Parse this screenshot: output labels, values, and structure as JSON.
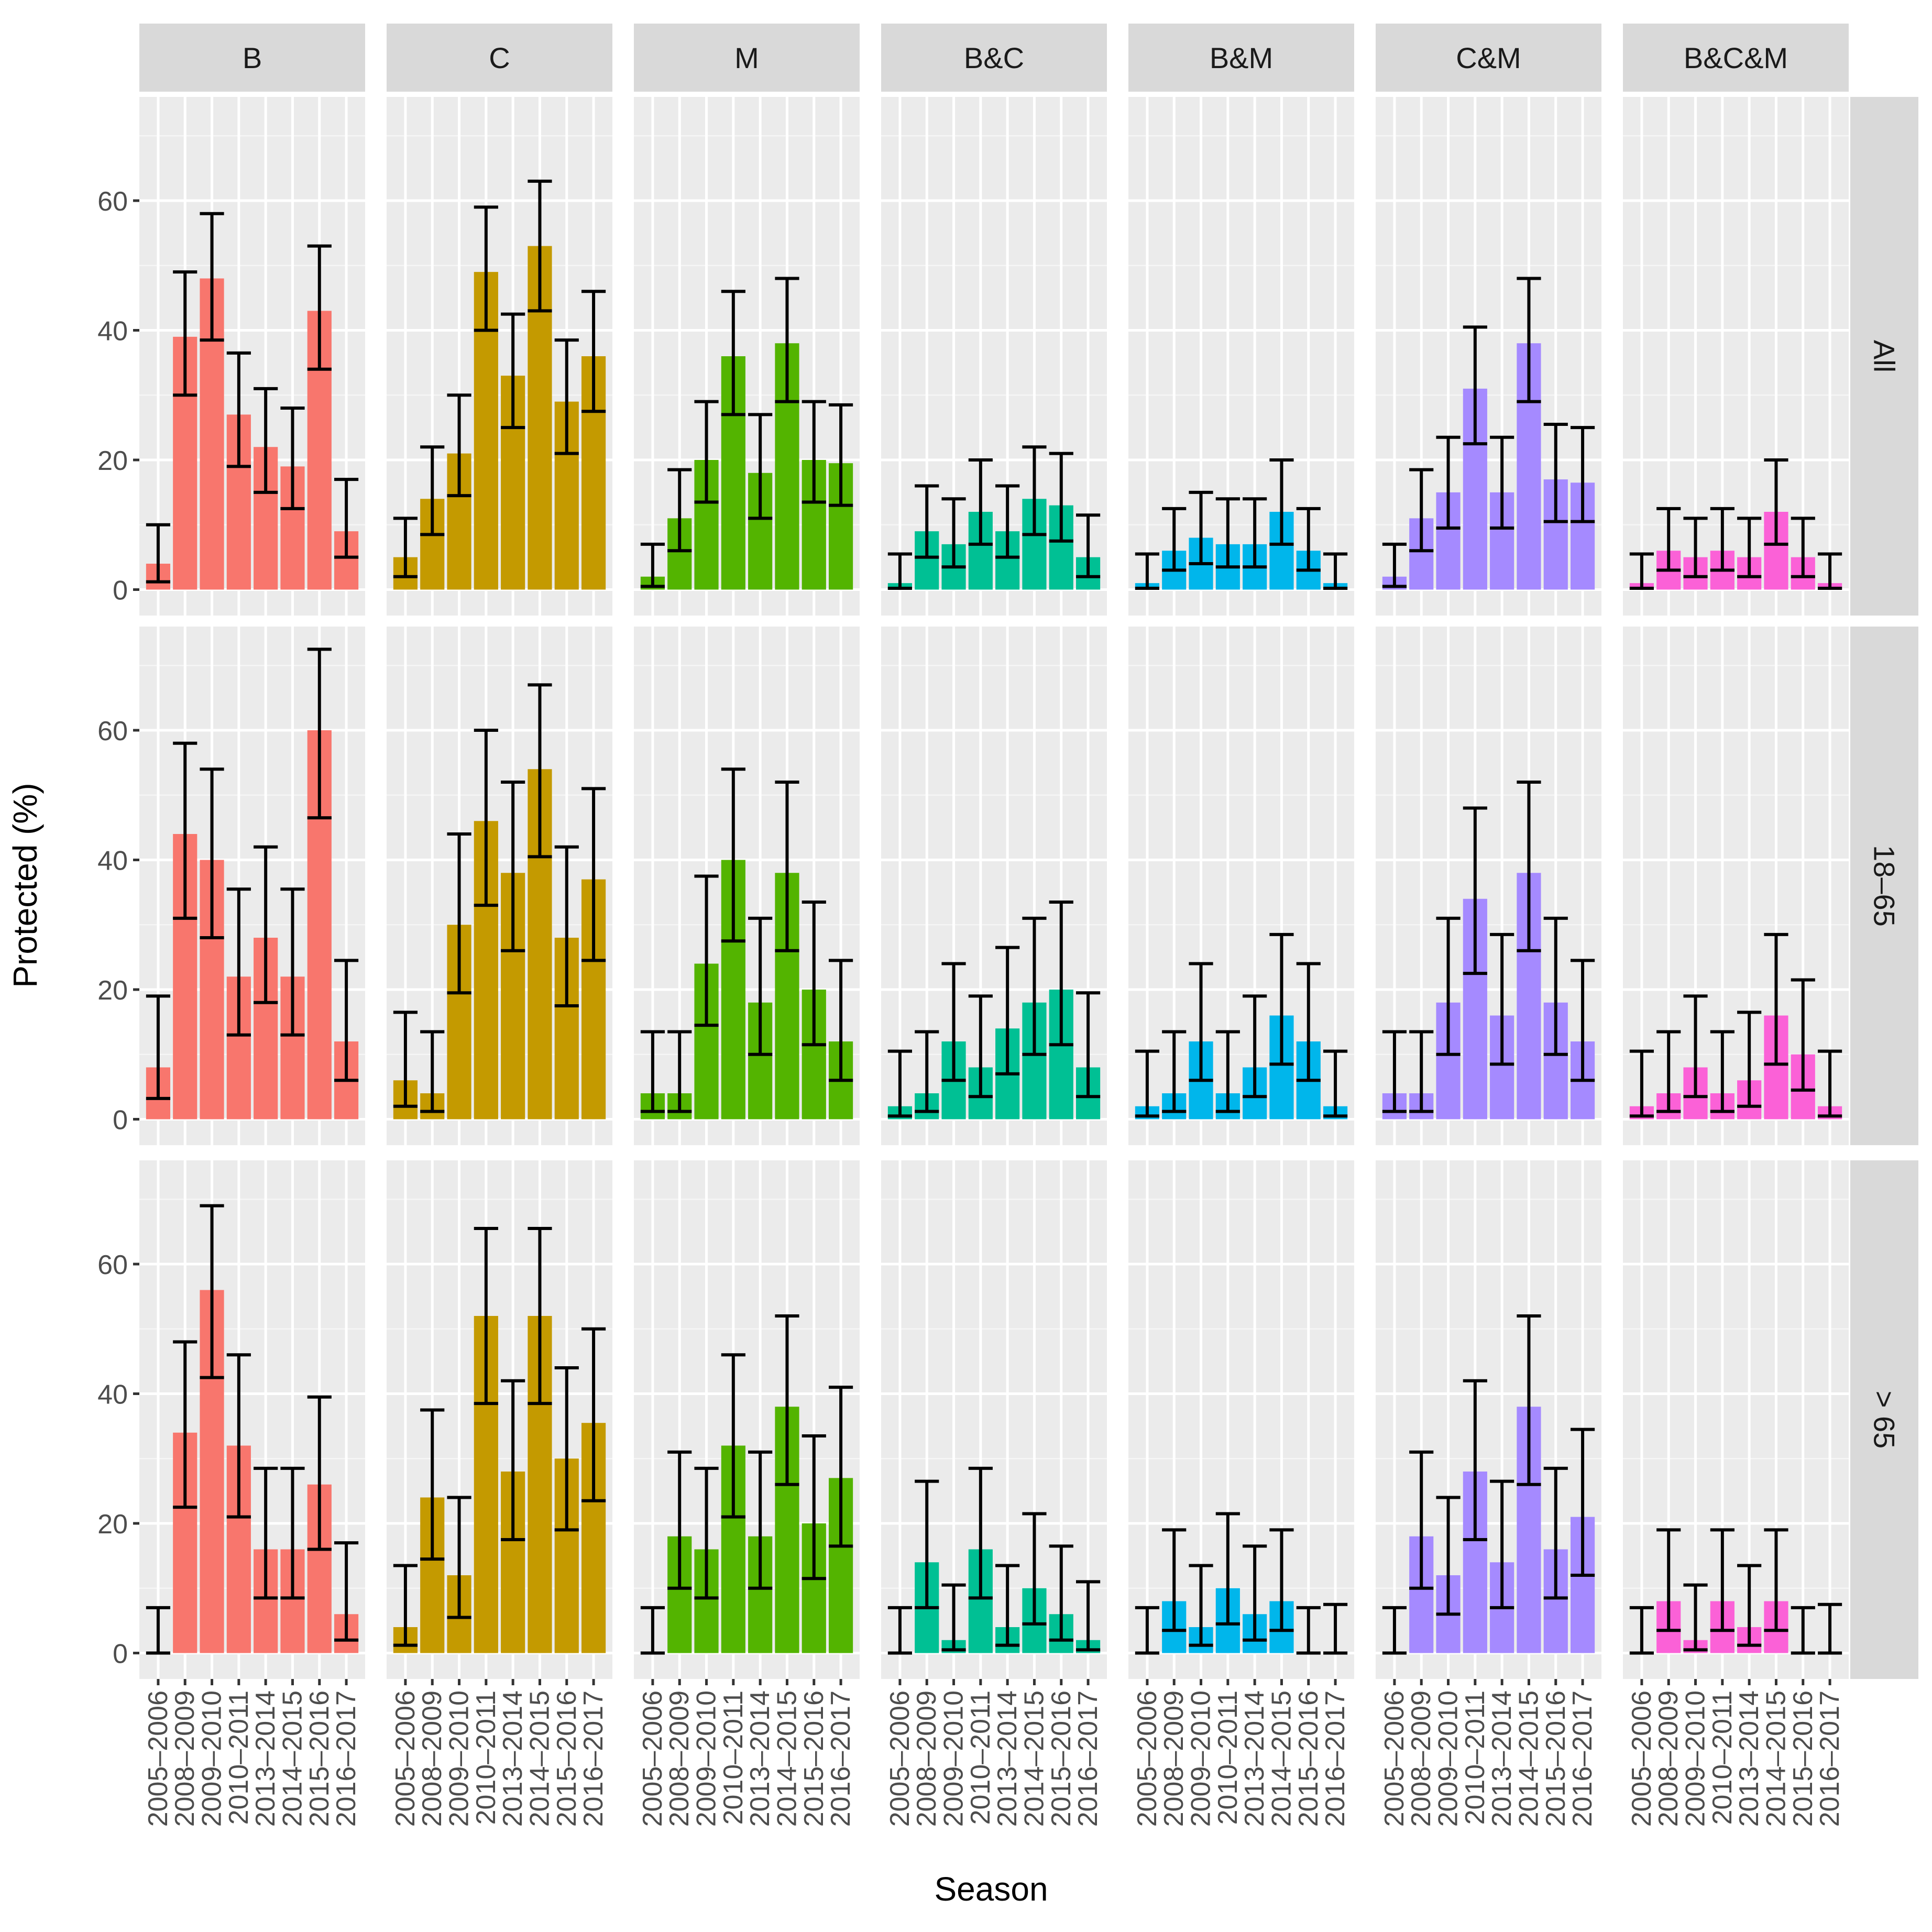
{
  "chart_data": {
    "type": "bar",
    "title": "",
    "xlabel": "Season",
    "ylabel": "Protected (%)",
    "ylim": [
      -4,
      76
    ],
    "yticks": [
      0,
      20,
      40,
      60
    ],
    "grid": true,
    "legend": "none",
    "categories": [
      "2005–2006",
      "2008–2009",
      "2009–2010",
      "2010–2011",
      "2013–2014",
      "2014–2015",
      "2015–2016",
      "2016–2017"
    ],
    "facet_columns": [
      {
        "label": "B",
        "color": "#F8766D"
      },
      {
        "label": "C",
        "color": "#C49A00"
      },
      {
        "label": "M",
        "color": "#53B400"
      },
      {
        "label": "B&C",
        "color": "#00C094"
      },
      {
        "label": "B&M",
        "color": "#00B6EB"
      },
      {
        "label": "C&M",
        "color": "#A58AFF"
      },
      {
        "label": "B&C&M",
        "color": "#FB61D7"
      }
    ],
    "facet_rows": [
      "All",
      "18–65",
      "> 65"
    ],
    "panels": [
      [
        {
          "values": [
            4,
            39,
            48,
            27,
            22,
            19,
            43,
            9
          ],
          "lower": [
            1.2,
            30,
            38.5,
            19,
            15,
            12.5,
            34,
            5
          ],
          "upper": [
            10,
            49,
            58,
            36.5,
            31,
            28,
            53,
            17
          ]
        },
        {
          "values": [
            5,
            14,
            21,
            49,
            33,
            53,
            29,
            36
          ],
          "lower": [
            2,
            8.5,
            14.5,
            40,
            25,
            43,
            21,
            27.5
          ],
          "upper": [
            11,
            22,
            30,
            59,
            42.5,
            63,
            38.5,
            46
          ]
        },
        {
          "values": [
            2,
            11,
            20,
            36,
            18,
            38,
            20,
            19.5
          ],
          "lower": [
            0.5,
            6,
            13.5,
            27,
            11,
            29,
            13.5,
            13
          ],
          "upper": [
            7,
            18.5,
            29,
            46,
            27,
            48,
            29,
            28.5
          ]
        },
        {
          "values": [
            1,
            9,
            7,
            12,
            9,
            14,
            13,
            5
          ],
          "lower": [
            0.2,
            5,
            3.5,
            7,
            5,
            8.5,
            7.5,
            2
          ],
          "upper": [
            5.5,
            16,
            14,
            20,
            16,
            22,
            21,
            11.5
          ]
        },
        {
          "values": [
            1,
            6,
            8,
            7,
            7,
            12,
            6,
            1
          ],
          "lower": [
            0.2,
            3,
            4,
            3.5,
            3.5,
            7,
            3,
            0.2
          ],
          "upper": [
            5.5,
            12.5,
            15,
            14,
            14,
            20,
            12.5,
            5.5
          ]
        },
        {
          "values": [
            2,
            11,
            15,
            31,
            15,
            38,
            17,
            16.5
          ],
          "lower": [
            0.5,
            6,
            9.5,
            22.5,
            9.5,
            29,
            10.5,
            10.5
          ],
          "upper": [
            7,
            18.5,
            23.5,
            40.5,
            23.5,
            48,
            25.5,
            25
          ]
        },
        {
          "values": [
            1,
            6,
            5,
            6,
            5,
            12,
            5,
            1
          ],
          "lower": [
            0.2,
            3,
            2,
            3,
            2,
            7,
            2,
            0.2
          ],
          "upper": [
            5.5,
            12.5,
            11,
            12.5,
            11,
            20,
            11,
            5.5
          ]
        }
      ],
      [
        {
          "values": [
            8,
            44,
            40,
            22,
            28,
            22,
            60,
            12
          ],
          "lower": [
            3.2,
            31,
            28,
            13,
            18,
            13,
            46.5,
            6
          ],
          "upper": [
            19,
            58,
            54,
            35.5,
            42,
            35.5,
            72.5,
            24.5
          ]
        },
        {
          "values": [
            6,
            4,
            30,
            46,
            38,
            54,
            28,
            37
          ],
          "lower": [
            2,
            1.2,
            19.5,
            33,
            26,
            40.5,
            17.5,
            24.5
          ],
          "upper": [
            16.5,
            13.5,
            44,
            60,
            52,
            67,
            42,
            51
          ]
        },
        {
          "values": [
            4,
            4,
            24,
            40,
            18,
            38,
            20,
            12
          ],
          "lower": [
            1.2,
            1.2,
            14.5,
            27.5,
            10,
            26,
            11.5,
            6
          ],
          "upper": [
            13.5,
            13.5,
            37.5,
            54,
            31,
            52,
            33.5,
            24.5
          ]
        },
        {
          "values": [
            2,
            4,
            12,
            8,
            14,
            18,
            20,
            8
          ],
          "lower": [
            0.5,
            1.2,
            6,
            3.5,
            7,
            10,
            11.5,
            3.5
          ],
          "upper": [
            10.5,
            13.5,
            24,
            19,
            26.5,
            31,
            33.5,
            19.5
          ]
        },
        {
          "values": [
            2,
            4,
            12,
            4,
            8,
            16,
            12,
            2
          ],
          "lower": [
            0.5,
            1.2,
            6,
            1.2,
            3.5,
            8.5,
            6,
            0.5
          ],
          "upper": [
            10.5,
            13.5,
            24,
            13.5,
            19,
            28.5,
            24,
            10.5
          ]
        },
        {
          "values": [
            4,
            4,
            18,
            34,
            16,
            38,
            18,
            12
          ],
          "lower": [
            1.2,
            1.2,
            10,
            22.5,
            8.5,
            26,
            10,
            6
          ],
          "upper": [
            13.5,
            13.5,
            31,
            48,
            28.5,
            52,
            31,
            24.5
          ]
        },
        {
          "values": [
            2,
            4,
            8,
            4,
            6,
            16,
            10,
            2
          ],
          "lower": [
            0.5,
            1.2,
            3.5,
            1.2,
            2,
            8.5,
            4.5,
            0.5
          ],
          "upper": [
            10.5,
            13.5,
            19,
            13.5,
            16.5,
            28.5,
            21.5,
            10.5
          ]
        }
      ],
      [
        {
          "values": [
            0,
            34,
            56,
            32,
            16,
            16,
            26,
            6
          ],
          "lower": [
            0,
            22.5,
            42.5,
            21,
            8.5,
            8.5,
            16,
            2
          ],
          "upper": [
            7,
            48,
            69,
            46,
            28.5,
            28.5,
            39.5,
            17
          ]
        },
        {
          "values": [
            4,
            24,
            12,
            52,
            28,
            52,
            30,
            35.5
          ],
          "lower": [
            1.2,
            14.5,
            5.5,
            38.5,
            17.5,
            38.5,
            19,
            23.5
          ],
          "upper": [
            13.5,
            37.5,
            24,
            65.5,
            42,
            65.5,
            44,
            50
          ]
        },
        {
          "values": [
            0,
            18,
            16,
            32,
            18,
            38,
            20,
            27
          ],
          "lower": [
            0,
            10,
            8.5,
            21,
            10,
            26,
            11.5,
            16.5
          ],
          "upper": [
            7,
            31,
            28.5,
            46,
            31,
            52,
            33.5,
            41
          ]
        },
        {
          "values": [
            0,
            14,
            2,
            16,
            4,
            10,
            6,
            2
          ],
          "lower": [
            0,
            7,
            0.5,
            8.5,
            1.2,
            4.5,
            2,
            0.5
          ],
          "upper": [
            7,
            26.5,
            10.5,
            28.5,
            13.5,
            21.5,
            16.5,
            11
          ]
        },
        {
          "values": [
            0,
            8,
            4,
            10,
            6,
            8,
            0,
            0
          ],
          "lower": [
            0,
            3.5,
            1.2,
            4.5,
            2,
            3.5,
            0,
            0
          ],
          "upper": [
            7,
            19,
            13.5,
            21.5,
            16.5,
            19,
            7,
            7.5
          ]
        },
        {
          "values": [
            0,
            18,
            12,
            28,
            14,
            38,
            16,
            21
          ],
          "lower": [
            0,
            10,
            6,
            17.5,
            7,
            26,
            8.5,
            12
          ],
          "upper": [
            7,
            31,
            24,
            42,
            26.5,
            52,
            28.5,
            34.5
          ]
        },
        {
          "values": [
            0,
            8,
            2,
            8,
            4,
            8,
            0,
            0
          ],
          "lower": [
            0,
            3.5,
            0.5,
            3.5,
            1.2,
            3.5,
            0,
            0
          ],
          "upper": [
            7,
            19,
            10.5,
            19,
            13.5,
            19,
            7,
            7.5
          ]
        }
      ]
    ]
  }
}
